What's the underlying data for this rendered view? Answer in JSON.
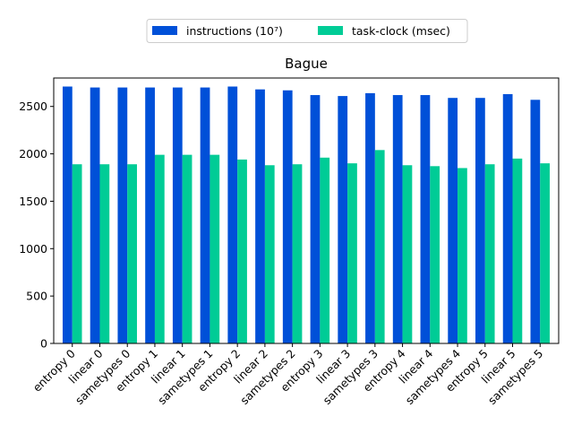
{
  "chart_data": {
    "type": "bar",
    "title": "Bague",
    "xlabel": "",
    "ylabel": "",
    "ylim": [
      0,
      2800
    ],
    "yticks": [
      0,
      500,
      1000,
      1500,
      2000,
      2500
    ],
    "grid": false,
    "legend_position": "top-center",
    "categories": [
      "entropy 0",
      "linear 0",
      "sametypes 0",
      "entropy 1",
      "linear 1",
      "sametypes 1",
      "entropy 2",
      "linear 2",
      "sametypes 2",
      "entropy 3",
      "linear 3",
      "sametypes 3",
      "entropy 4",
      "linear 4",
      "sametypes 4",
      "entropy 5",
      "linear 5",
      "sametypes 5"
    ],
    "series": [
      {
        "name": "instructions (10⁷)",
        "color": "#0050d8",
        "values": [
          2710,
          2700,
          2700,
          2700,
          2700,
          2700,
          2710,
          2680,
          2670,
          2620,
          2610,
          2640,
          2620,
          2620,
          2590,
          2590,
          2630,
          2570
        ]
      },
      {
        "name": "task-clock (msec)",
        "color": "#00cc96",
        "values": [
          1890,
          1890,
          1890,
          1990,
          1990,
          1990,
          1940,
          1880,
          1890,
          1960,
          1900,
          2040,
          1880,
          1870,
          1850,
          1890,
          1950,
          1900
        ]
      }
    ]
  }
}
